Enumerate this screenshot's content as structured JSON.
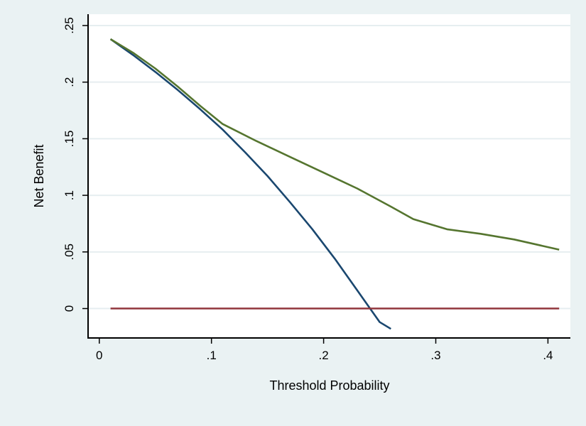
{
  "chart_data": {
    "type": "line",
    "title": "",
    "xlabel": "Threshold Probability",
    "ylabel": "Net Benefit",
    "xlim": [
      -0.01,
      0.42
    ],
    "ylim": [
      -0.026,
      0.26
    ],
    "xticks": [
      {
        "value": 0,
        "label": "0"
      },
      {
        "value": 0.1,
        "label": ".1"
      },
      {
        "value": 0.2,
        "label": ".2"
      },
      {
        "value": 0.3,
        "label": ".3"
      },
      {
        "value": 0.4,
        "label": ".4"
      }
    ],
    "yticks": [
      {
        "value": 0,
        "label": "0"
      },
      {
        "value": 0.05,
        "label": ".05"
      },
      {
        "value": 0.1,
        "label": ".1"
      },
      {
        "value": 0.15,
        "label": ".15"
      },
      {
        "value": 0.2,
        "label": ".2"
      },
      {
        "value": 0.25,
        "label": ".25"
      }
    ],
    "grid": true,
    "colors": {
      "background": "#eaf2f3",
      "plot_area": "#ffffff",
      "grid": "#e6eef0",
      "axis": "#000000"
    },
    "series": [
      {
        "color": "#1a476f",
        "x": [
          0.01,
          0.03,
          0.05,
          0.07,
          0.09,
          0.11,
          0.13,
          0.15,
          0.17,
          0.19,
          0.21,
          0.23,
          0.25,
          0.26
        ],
        "y": [
          0.238,
          0.224,
          0.209,
          0.193,
          0.176,
          0.158,
          0.138,
          0.117,
          0.094,
          0.07,
          0.044,
          0.016,
          -0.012,
          -0.018
        ]
      },
      {
        "color": "#55752f",
        "x": [
          0.01,
          0.03,
          0.05,
          0.07,
          0.09,
          0.11,
          0.14,
          0.17,
          0.2,
          0.23,
          0.26,
          0.28,
          0.31,
          0.34,
          0.37,
          0.41
        ],
        "y": [
          0.238,
          0.226,
          0.212,
          0.196,
          0.179,
          0.163,
          0.148,
          0.134,
          0.12,
          0.106,
          0.09,
          0.079,
          0.07,
          0.066,
          0.061,
          0.052
        ]
      },
      {
        "color": "#90353b",
        "x": [
          0.01,
          0.41
        ],
        "y": [
          0,
          0
        ]
      }
    ]
  }
}
